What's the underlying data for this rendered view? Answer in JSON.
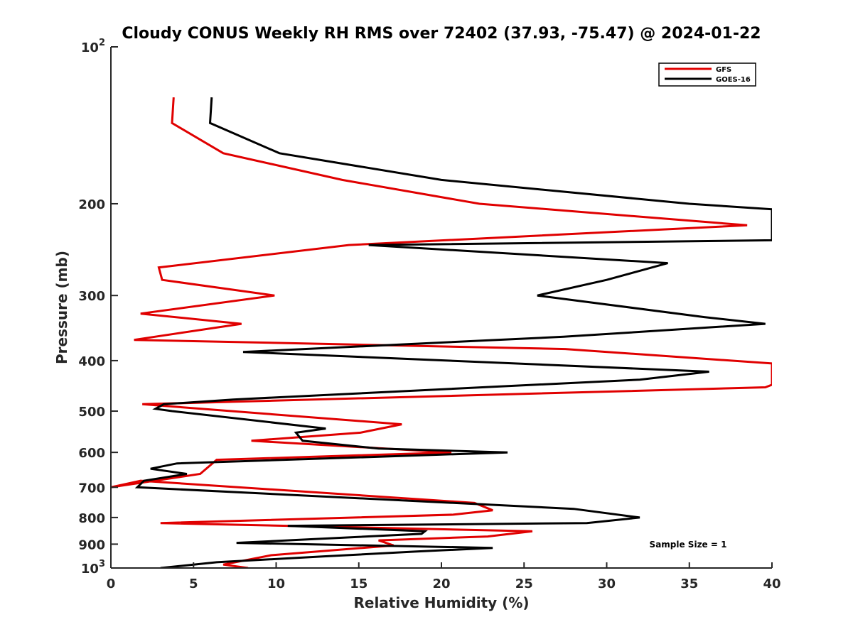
{
  "chart_data": {
    "type": "line",
    "title": "Cloudy CONUS Weekly RH RMS over 72402 (37.93, -75.47) @ 2024-01-22",
    "xlabel": "Relative Humidity (%)",
    "ylabel": "Pressure (mb)",
    "xlim": [
      0,
      40
    ],
    "ylim": [
      100,
      1000
    ],
    "y_scale": "log",
    "y_reversed": true,
    "grid": false,
    "legend_position": "top-right",
    "x_ticks": [
      "0",
      "5",
      "10",
      "15",
      "20",
      "25",
      "30",
      "35",
      "40"
    ],
    "y_ticks": [
      {
        "value": 100,
        "label": "10",
        "sup": "2"
      },
      {
        "value": 200,
        "label": "200"
      },
      {
        "value": 300,
        "label": "300"
      },
      {
        "value": 400,
        "label": "400"
      },
      {
        "value": 500,
        "label": "500"
      },
      {
        "value": 600,
        "label": "600"
      },
      {
        "value": 700,
        "label": "700"
      },
      {
        "value": 800,
        "label": "800"
      },
      {
        "value": 900,
        "label": "900"
      },
      {
        "value": 1000,
        "label": "10",
        "sup": "3"
      }
    ],
    "annotation": "Sample Size = 1",
    "series": [
      {
        "name": "GFS",
        "color": "#e00000",
        "x": [
          3.8,
          3.7,
          6.8,
          14,
          22.3,
          38.5,
          14.4,
          2.9,
          3.1,
          9.9,
          1.8,
          7.9,
          1.4,
          27.5,
          40,
          40,
          39.6,
          1.9,
          17.6,
          15.1,
          8.5,
          20.6,
          6.4,
          5.4,
          0,
          1.8,
          22,
          23.1,
          20.7,
          3,
          25.5,
          22.8,
          16.2,
          17.1,
          9.7,
          6.8,
          8.3
        ],
        "y": [
          125,
          140,
          160,
          180,
          200,
          220,
          240,
          265,
          280,
          300,
          325,
          340,
          365,
          380,
          405,
          445,
          450,
          485,
          530,
          550,
          570,
          600,
          620,
          660,
          700,
          680,
          750,
          775,
          790,
          820,
          850,
          870,
          885,
          905,
          945,
          985,
          1000
        ]
      },
      {
        "name": "GOES-16",
        "color": "#000000",
        "x": [
          6.1,
          6.0,
          10.2,
          20.0,
          35.0,
          40.0,
          40.0,
          15.6,
          33.7,
          30.0,
          25.8,
          35.9,
          39.6,
          27.4,
          8.0,
          36.2,
          32.0,
          7.4,
          3.2,
          2.7,
          3.7,
          13.0,
          11.2,
          11.6,
          16.2,
          24.0,
          4.0,
          2.4,
          4.6,
          2.0,
          1.6,
          28.0,
          32.0,
          28.8,
          10.7,
          19.0,
          18.8,
          7.6,
          23.1,
          18.4,
          12.9,
          6.4,
          3.0
        ],
        "y": [
          125,
          140,
          160,
          180,
          200,
          205,
          235,
          240,
          260,
          280,
          300,
          330,
          340,
          360,
          385,
          420,
          435,
          475,
          485,
          495,
          500,
          540,
          550,
          570,
          590,
          600,
          630,
          645,
          660,
          680,
          700,
          770,
          800,
          820,
          830,
          850,
          860,
          895,
          915,
          930,
          950,
          975,
          1000
        ]
      }
    ]
  }
}
